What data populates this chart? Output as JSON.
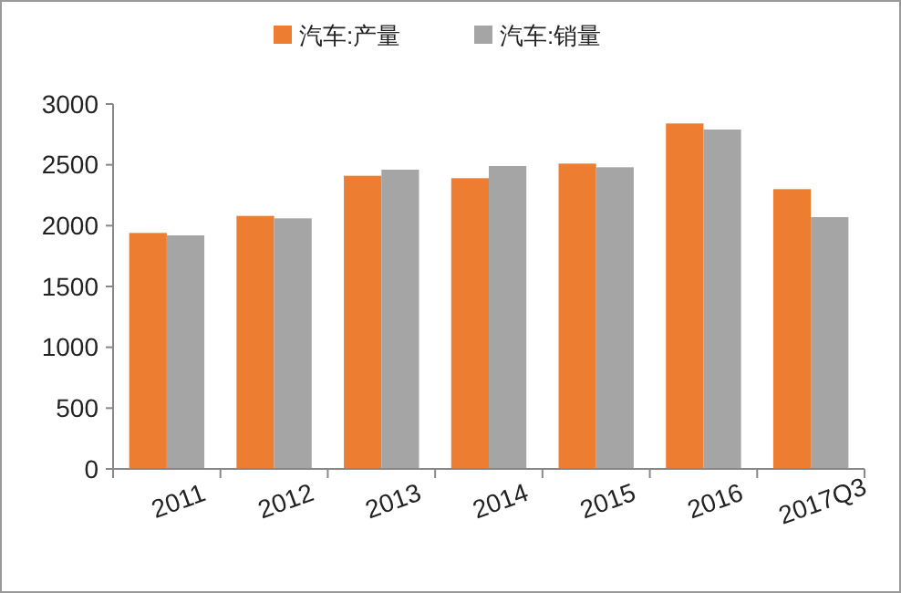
{
  "chart_data": {
    "type": "bar",
    "categories": [
      "2011",
      "2012",
      "2013",
      "2014",
      "2015",
      "2016",
      "2017Q3"
    ],
    "series": [
      {
        "name": "汽车:产量",
        "color": "#ed7d31",
        "values": [
          1940,
          2080,
          2410,
          2390,
          2510,
          2840,
          2300
        ]
      },
      {
        "name": "汽车:销量",
        "color": "#a5a5a5",
        "values": [
          1920,
          2060,
          2460,
          2490,
          2480,
          2790,
          2070
        ]
      }
    ],
    "ylim": [
      0,
      3000
    ],
    "yticks": [
      0,
      500,
      1000,
      1500,
      2000,
      2500,
      3000
    ],
    "legend": "top",
    "grid": false
  }
}
